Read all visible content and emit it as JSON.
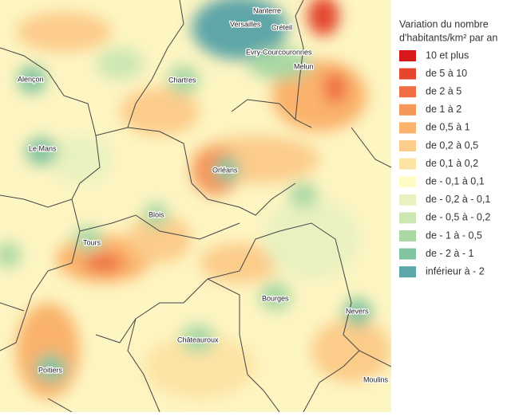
{
  "legend": {
    "title_lines": [
      "Variation du nombre",
      "d'habitants/km² par an"
    ],
    "items": [
      {
        "label": "10 et plus",
        "color": "#d7191c"
      },
      {
        "label": "de 5 à 10",
        "color": "#e4462e"
      },
      {
        "label": "de 2 à 5",
        "color": "#ef6e44"
      },
      {
        "label": "de 1 à 2",
        "color": "#f5965a"
      },
      {
        "label": "de 0,5 à 1",
        "color": "#fab26c"
      },
      {
        "label": "de 0,2 à 0,5",
        "color": "#fccc8a"
      },
      {
        "label": "de 0,1 à 0,2",
        "color": "#fde3a4"
      },
      {
        "label": "de - 0,1 à 0,1",
        "color": "#fffbc6"
      },
      {
        "label": "de - 0,2 à - 0,1",
        "color": "#e8f2c0"
      },
      {
        "label": "de - 0,5 à - 0,2",
        "color": "#cde7b2"
      },
      {
        "label": "de - 1 à - 0,5",
        "color": "#a9d8a4"
      },
      {
        "label": "de - 2 à - 1",
        "color": "#82c4a0"
      },
      {
        "label": "inférieur à - 2",
        "color": "#5ea6a8"
      }
    ]
  },
  "cities": [
    "Nanterre",
    "Versailles",
    "Créteil",
    "Evry-Courcouronnes",
    "Melun",
    "Alençon",
    "Chartres",
    "Le Mans",
    "Orléans",
    "Blois",
    "Tours",
    "Bourges",
    "Nevers",
    "Châteauroux",
    "Poitiers",
    "Moulins"
  ]
}
